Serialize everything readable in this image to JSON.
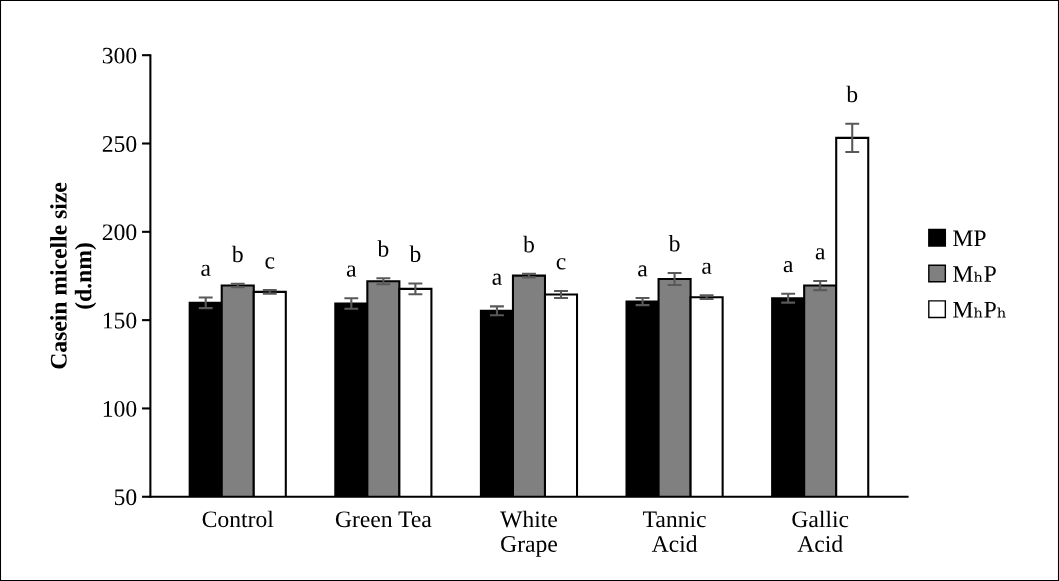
{
  "chart_data": {
    "type": "bar",
    "ylabel": "Casein micelle size\n(d.nm)",
    "categories": [
      "Control",
      "Green Tea",
      "White\nGrape",
      "Tannic\nAcid",
      "Gallic\nAcid"
    ],
    "series": [
      {
        "name": "MP",
        "color": "#000000",
        "values": [
          159.8,
          159.4,
          155.3,
          160.5,
          162.4
        ],
        "errors": [
          3,
          3,
          2.5,
          2,
          2.5
        ]
      },
      {
        "name": "MₕP",
        "color": "#808080",
        "values": [
          169.6,
          172.0,
          175.2,
          173.3,
          169.6
        ],
        "errors": [
          1,
          1.7,
          1,
          3.4,
          2.6
        ]
      },
      {
        "name": "MₕPₕ",
        "color": "#ffffff",
        "values": [
          166.0,
          167.7,
          164.5,
          163.0,
          253.2
        ],
        "errors": [
          1,
          3,
          2,
          1,
          8
        ]
      }
    ],
    "ylim": [
      50,
      300
    ],
    "yticks": [
      50,
      100,
      150,
      200,
      250,
      300
    ],
    "grid": false,
    "legend": "right",
    "annotations": [
      "a",
      "b",
      "c",
      "a",
      "b",
      "b",
      "a",
      "b",
      "c",
      "a",
      "b",
      "a",
      "a",
      "a",
      "b"
    ]
  }
}
